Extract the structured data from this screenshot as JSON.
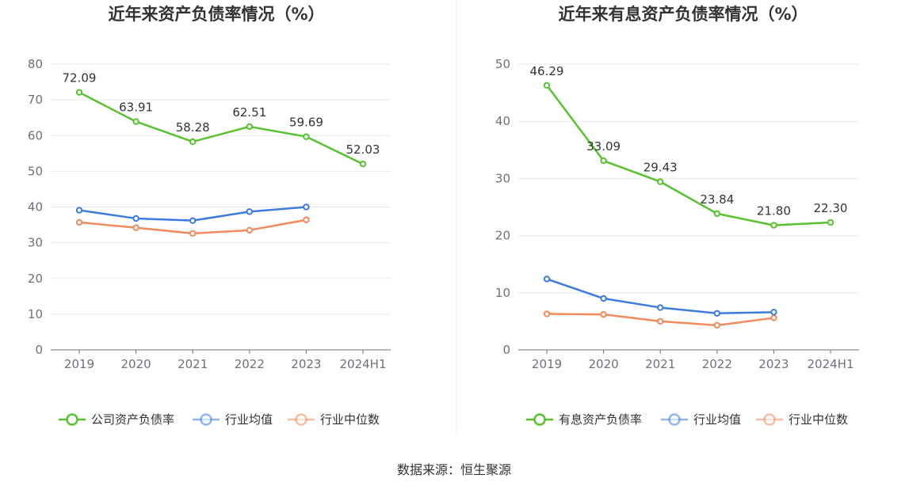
{
  "colors": {
    "company": "#58c22e",
    "avg": "#3d7be0",
    "median": "#f28a5c"
  },
  "source": "数据来源：恒生聚源",
  "chart_data": [
    {
      "type": "line",
      "title": "近年来资产负债率情况（%）",
      "categories": [
        "2019",
        "2020",
        "2021",
        "2022",
        "2023",
        "2024H1"
      ],
      "ylim": [
        0,
        80
      ],
      "yticks": [
        0,
        10,
        20,
        30,
        40,
        50,
        60,
        70,
        80
      ],
      "grid": true,
      "legend_position": "bottom",
      "series": [
        {
          "name": "公司资产负债率",
          "color": "#58c22e",
          "labels": true,
          "values": [
            72.09,
            63.91,
            58.28,
            62.51,
            59.69,
            52.03
          ]
        },
        {
          "name": "行业均值",
          "color": "#3d7be0",
          "labels": false,
          "values": [
            39.1,
            36.8,
            36.2,
            38.7,
            40.0,
            null
          ]
        },
        {
          "name": "行业中位数",
          "color": "#f28a5c",
          "labels": false,
          "values": [
            35.7,
            34.2,
            32.6,
            33.5,
            36.4,
            null
          ]
        }
      ]
    },
    {
      "type": "line",
      "title": "近年来有息资产负债率情况（%）",
      "categories": [
        "2019",
        "2020",
        "2021",
        "2022",
        "2023",
        "2024H1"
      ],
      "ylim": [
        0,
        50
      ],
      "yticks": [
        0,
        10,
        20,
        30,
        40,
        50
      ],
      "grid": true,
      "legend_position": "bottom",
      "series": [
        {
          "name": "有息资产负债率",
          "color": "#58c22e",
          "labels": true,
          "values": [
            46.29,
            33.09,
            29.43,
            23.84,
            21.8,
            22.3
          ]
        },
        {
          "name": "行业均值",
          "color": "#3d7be0",
          "labels": false,
          "values": [
            12.4,
            9.0,
            7.4,
            6.4,
            6.6,
            null
          ]
        },
        {
          "name": "行业中位数",
          "color": "#f28a5c",
          "labels": false,
          "values": [
            6.3,
            6.2,
            5.0,
            4.3,
            5.6,
            null
          ]
        }
      ]
    }
  ]
}
